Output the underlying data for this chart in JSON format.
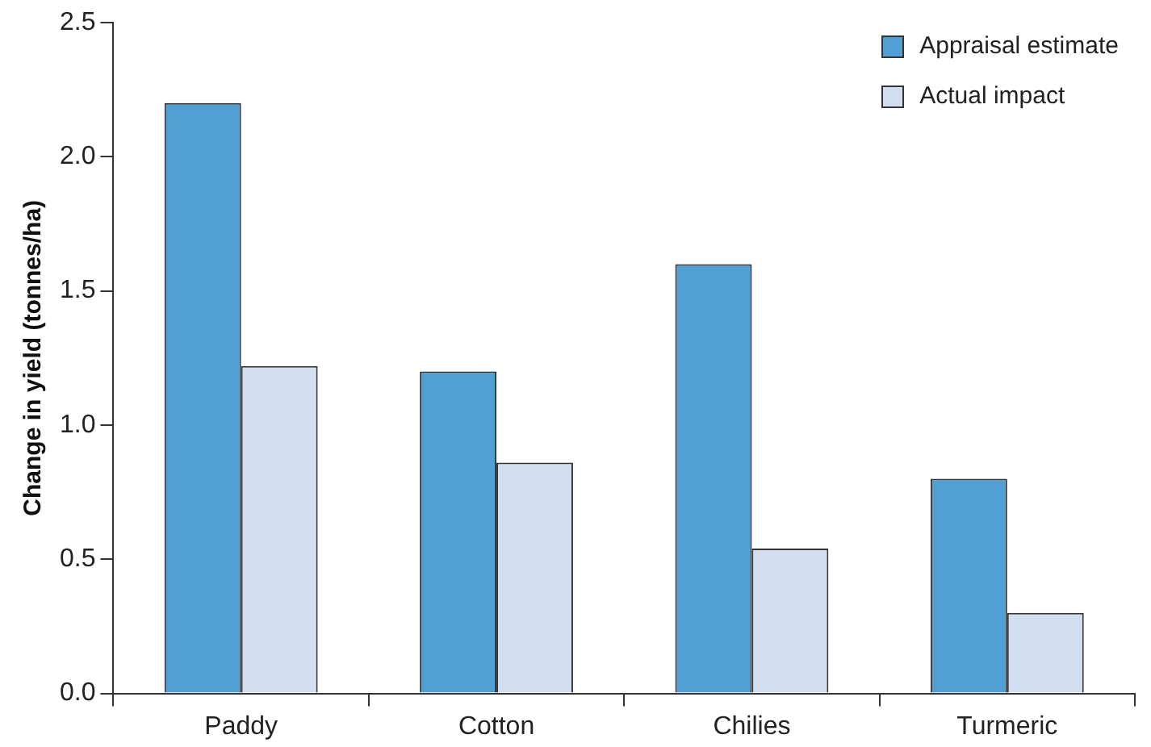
{
  "chart_data": {
    "type": "bar",
    "ylabel": "Change in yield (tonnes/ha)",
    "categories": [
      "Paddy",
      "Cotton",
      "Chilies",
      "Turmeric"
    ],
    "series": [
      {
        "name": "Appraisal estimate",
        "color": "#529fd3",
        "values": [
          2.2,
          1.2,
          1.6,
          0.8
        ]
      },
      {
        "name": "Actual impact",
        "color": "#d3dff0",
        "values": [
          1.22,
          0.86,
          0.54,
          0.3
        ]
      }
    ],
    "ylim": [
      0,
      2.5
    ],
    "yticks": [
      {
        "value": 0,
        "label": "0.0"
      },
      0.5,
      {
        "value": 1,
        "label": "1.0"
      },
      1.5,
      {
        "value": 2,
        "label": "2.0"
      },
      2.5
    ],
    "grid": false,
    "legend": "top right"
  }
}
